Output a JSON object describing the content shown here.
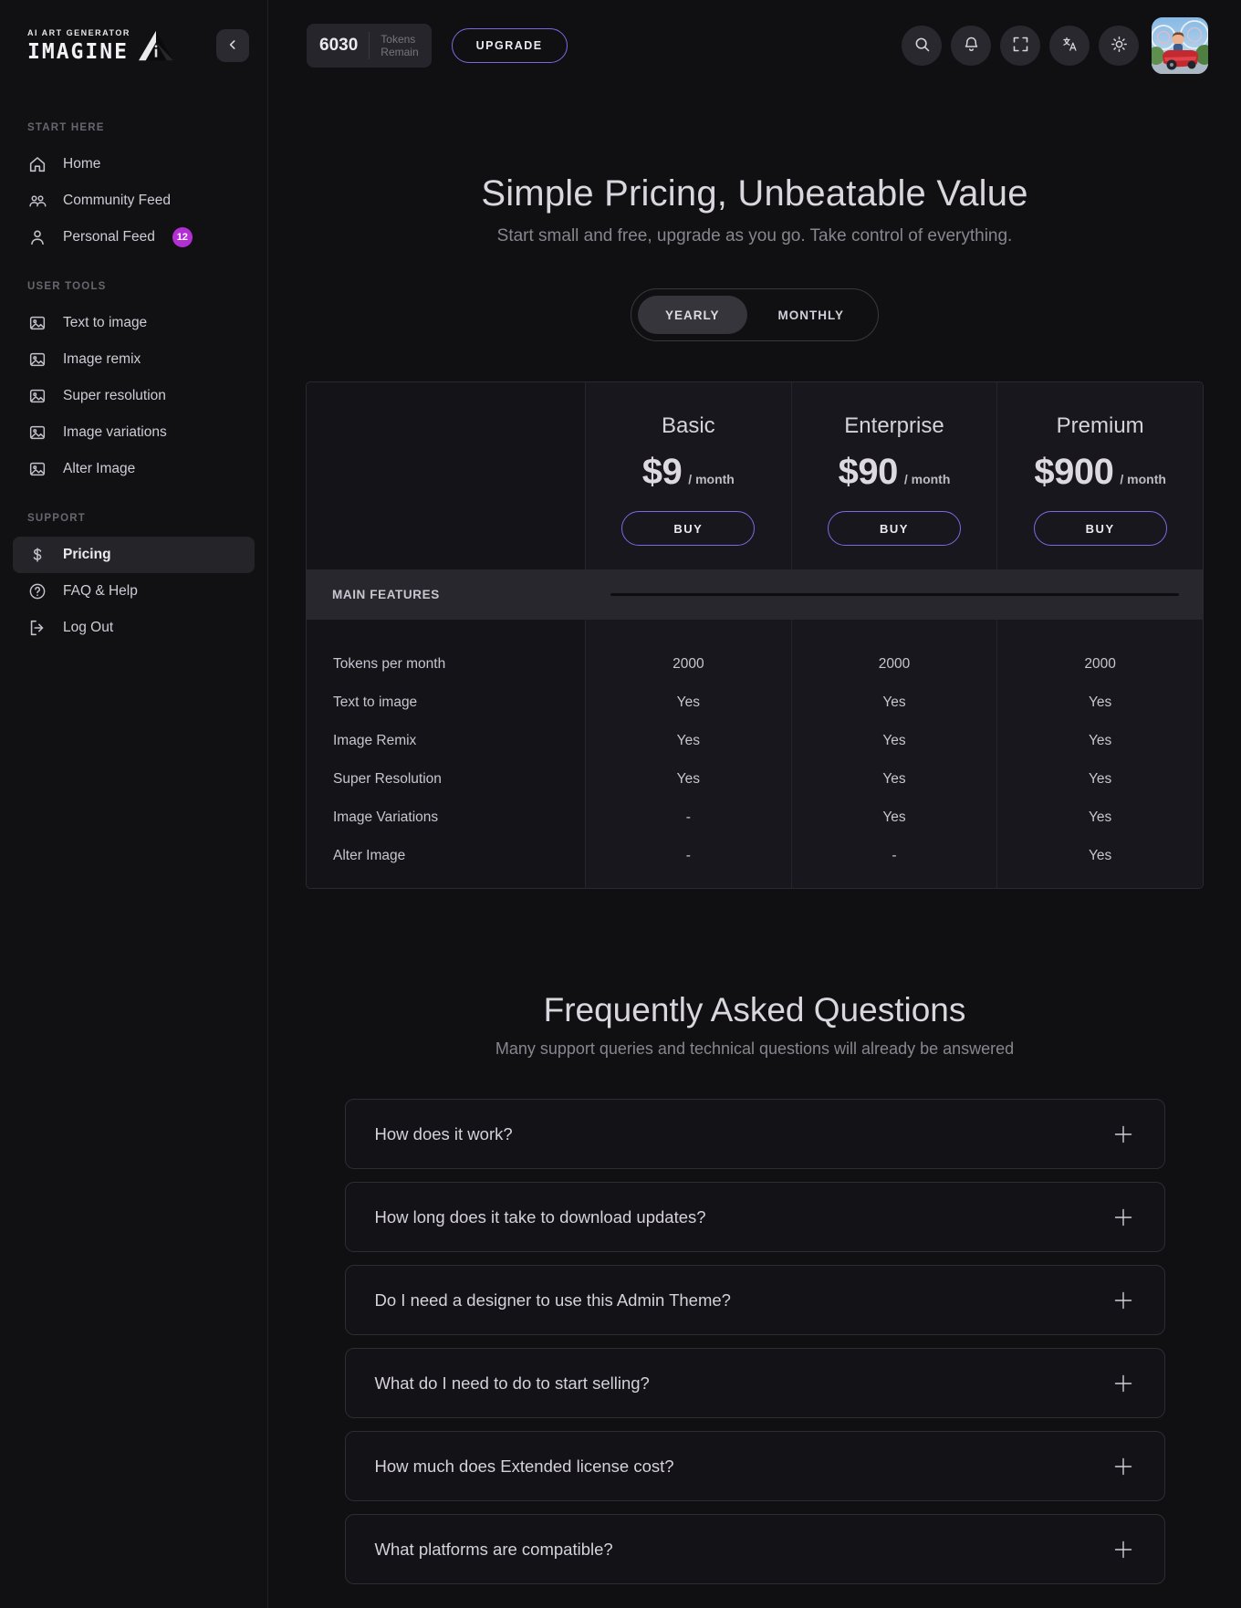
{
  "colors": {
    "accent": "#7c69e2",
    "badge": "#b32fd4"
  },
  "brand": {
    "tagline": "AI ART GENERATOR",
    "name": "IMAGINE",
    "logo_icon": "triangle-logo"
  },
  "topbar": {
    "tokens": {
      "value": "6030",
      "label_line1": "Tokens",
      "label_line2": "Remain"
    },
    "upgrade_label": "UPGRADE",
    "icon_buttons": [
      "search",
      "bell",
      "fullscreen",
      "translate",
      "theme"
    ],
    "avatar": "user-photo-kid-in-bumper-car"
  },
  "sidebar": {
    "collapse_icon": "chevron-left",
    "sections": [
      {
        "title": "START HERE",
        "items": [
          {
            "label": "Home",
            "icon": "home"
          },
          {
            "label": "Community Feed",
            "icon": "community"
          },
          {
            "label": "Personal Feed",
            "icon": "user",
            "badge": "12"
          }
        ]
      },
      {
        "title": "USER TOOLS",
        "items": [
          {
            "label": "Text to image",
            "icon": "image"
          },
          {
            "label": "Image remix",
            "icon": "image"
          },
          {
            "label": "Super resolution",
            "icon": "image"
          },
          {
            "label": "Image variations",
            "icon": "image"
          },
          {
            "label": "Alter Image",
            "icon": "image"
          }
        ]
      },
      {
        "title": "SUPPORT",
        "items": [
          {
            "label": "Pricing",
            "icon": "dollar",
            "active": true
          },
          {
            "label": "FAQ & Help",
            "icon": "help"
          },
          {
            "label": "Log Out",
            "icon": "logout"
          }
        ]
      }
    ]
  },
  "hero": {
    "title": "Simple Pricing, Unbeatable Value",
    "subtitle": "Start small and free, upgrade as you go. Take control of everything."
  },
  "billing_toggle": {
    "options": [
      {
        "label": "YEARLY",
        "active": true
      },
      {
        "label": "MONTHLY",
        "active": false
      }
    ]
  },
  "pricing": {
    "section_label": "MAIN FEATURES",
    "plans": [
      {
        "name": "Basic",
        "price": "$9",
        "period": "/ month",
        "cta": "BUY"
      },
      {
        "name": "Enterprise",
        "price": "$90",
        "period": "/ month",
        "cta": "BUY"
      },
      {
        "name": "Premium",
        "price": "$900",
        "period": "/ month",
        "cta": "BUY"
      }
    ],
    "features": [
      {
        "label": "Tokens per month",
        "values": [
          "2000",
          "2000",
          "2000"
        ]
      },
      {
        "label": "Text to image",
        "values": [
          "Yes",
          "Yes",
          "Yes"
        ]
      },
      {
        "label": "Image Remix",
        "values": [
          "Yes",
          "Yes",
          "Yes"
        ]
      },
      {
        "label": "Super Resolution",
        "values": [
          "Yes",
          "Yes",
          "Yes"
        ]
      },
      {
        "label": "Image Variations",
        "values": [
          "-",
          "Yes",
          "Yes"
        ]
      },
      {
        "label": "Alter Image",
        "values": [
          "-",
          "-",
          "Yes"
        ]
      }
    ]
  },
  "faq": {
    "title": "Frequently Asked Questions",
    "subtitle": "Many support queries and technical questions will already be answered",
    "expand_icon": "plus",
    "items": [
      "How does it work?",
      "How long does it take to download updates?",
      "Do I need a designer to use this Admin Theme?",
      "What do I need to do to start selling?",
      "How much does Extended license cost?",
      "What platforms are compatible?"
    ]
  }
}
